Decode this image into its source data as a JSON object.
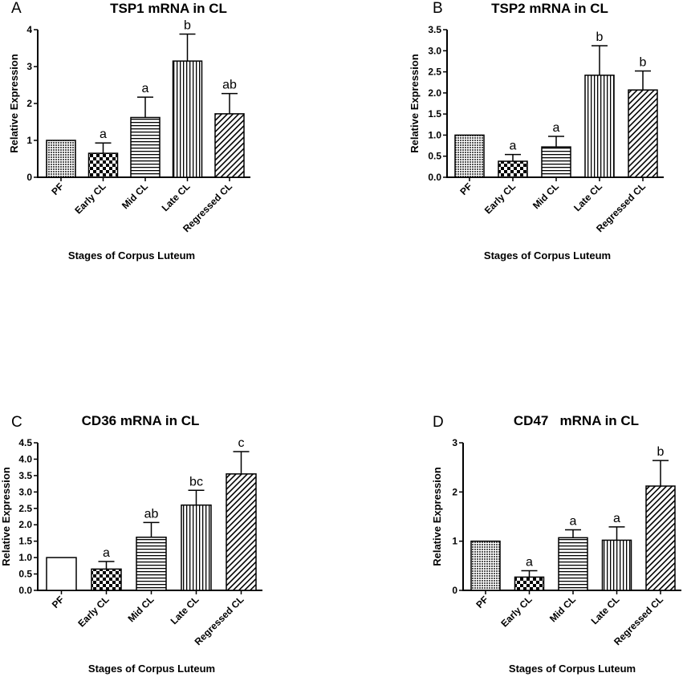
{
  "chart_data": [
    {
      "panel_letter": "A",
      "title": "TSP1 mRNA in CL",
      "type": "bar",
      "categories": [
        "PF",
        "Early CL",
        "Mid CL",
        "Late CL",
        "Regressed CL"
      ],
      "values": [
        1.0,
        0.65,
        1.62,
        3.15,
        1.72
      ],
      "error_bars": [
        0,
        0.28,
        0.55,
        0.73,
        0.55
      ],
      "annotations": [
        "",
        "a",
        "a",
        "b",
        "ab"
      ],
      "ylabel": "Relative Expression",
      "xlabel": "Stages of Corpus Luteum",
      "ylim": [
        0,
        4
      ],
      "yticks": [
        "0",
        "1",
        "2",
        "3",
        "4"
      ],
      "bar_patterns": [
        "dots",
        "checker",
        "hlines",
        "vlines",
        "diag"
      ]
    },
    {
      "panel_letter": "B",
      "title": "TSP2 mRNA in CL",
      "type": "bar",
      "categories": [
        "PF",
        "Early CL",
        "Mid CL",
        "Late CL",
        "Regressed CL"
      ],
      "values": [
        1.0,
        0.38,
        0.72,
        2.42,
        2.07
      ],
      "error_bars": [
        0,
        0.16,
        0.25,
        0.7,
        0.45
      ],
      "annotations": [
        "",
        "a",
        "a",
        "b",
        "b"
      ],
      "ylabel": "Relative Expression",
      "xlabel": "Stages of Corpus Luteum",
      "ylim": [
        0,
        3.5
      ],
      "yticks": [
        "0.0",
        "0.5",
        "1.0",
        "1.5",
        "2.0",
        "2.5",
        "3.0",
        "3.5"
      ],
      "bar_patterns": [
        "dots",
        "checker",
        "hlines",
        "vlines",
        "diag"
      ]
    },
    {
      "panel_letter": "C",
      "title": "CD36 mRNA in CL",
      "type": "bar",
      "categories": [
        "PF",
        "Early CL",
        "Mid CL",
        "Late CL",
        "Regressed CL"
      ],
      "values": [
        1.0,
        0.65,
        1.62,
        2.6,
        3.55
      ],
      "error_bars": [
        0,
        0.23,
        0.45,
        0.45,
        0.68
      ],
      "annotations": [
        "",
        "a",
        "ab",
        "bc",
        "c"
      ],
      "ylabel": "Relative Expression",
      "xlabel": "Stages of Corpus Luteum",
      "ylim": [
        0,
        4.5
      ],
      "yticks": [
        "0.0",
        "0.5",
        "1.0",
        "1.5",
        "2.0",
        "2.5",
        "3.0",
        "3.5",
        "4.0",
        "4.5"
      ],
      "bar_patterns": [
        "blank",
        "checker",
        "hlines",
        "vlines",
        "diag"
      ]
    },
    {
      "panel_letter": "D",
      "title": "CD47   mRNA in CL",
      "type": "bar",
      "categories": [
        "PF",
        "Early CL",
        "Mid CL",
        "Late CL",
        "Regressed CL"
      ],
      "values": [
        1.0,
        0.27,
        1.07,
        1.02,
        2.12
      ],
      "error_bars": [
        0,
        0.13,
        0.16,
        0.27,
        0.52
      ],
      "annotations": [
        "",
        "a",
        "a",
        "a",
        "b"
      ],
      "ylabel": "Relative Expression",
      "xlabel": "Stages of Corpus Luteum",
      "ylim": [
        0,
        3
      ],
      "yticks": [
        "0",
        "1",
        "2",
        "3"
      ],
      "bar_patterns": [
        "dots",
        "checker",
        "hlines",
        "vlines",
        "diag"
      ]
    }
  ]
}
